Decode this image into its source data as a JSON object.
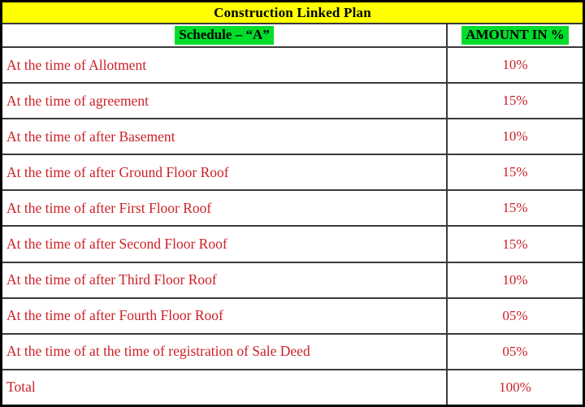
{
  "table": {
    "title": "Construction Linked Plan",
    "schedule_header": "Schedule – “A”",
    "amount_header": "AMOUNT IN %",
    "rows": [
      {
        "label": "At the time of Allotment",
        "amount": "10%"
      },
      {
        "label": "At the time of agreement",
        "amount": "15%"
      },
      {
        "label": "At the time of after Basement",
        "amount": "10%"
      },
      {
        "label": "At the time of after Ground Floor Roof",
        "amount": "15%"
      },
      {
        "label": "At the time of after First Floor Roof",
        "amount": "15%"
      },
      {
        "label": "At the time of after Second Floor Roof",
        "amount": "15%"
      },
      {
        "label": "At the time of after Third Floor Roof",
        "amount": "10%"
      },
      {
        "label": "At the time of after Fourth Floor Roof",
        "amount": "05%"
      },
      {
        "label": "At the time of at the time of registration of Sale Deed",
        "amount": "05%"
      },
      {
        "label": "Total",
        "amount": "100%"
      }
    ]
  },
  "colors": {
    "title_bg": "#ffff00",
    "highlight_bg": "#00dd2b",
    "row_text": "#cc2027",
    "grid_line": "#3a3a3a",
    "outer_border": "#000000"
  }
}
